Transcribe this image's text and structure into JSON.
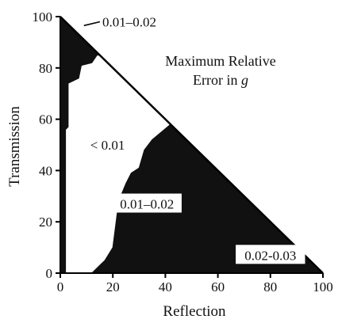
{
  "chart_data": {
    "type": "area",
    "title": "",
    "xlabel": "Reflection",
    "ylabel": "Transmission",
    "xlim": [
      0,
      100
    ],
    "ylim": [
      0,
      100
    ],
    "xticks": [
      "0",
      "20",
      "40",
      "60",
      "80",
      "100"
    ],
    "yticks": [
      "0",
      "20",
      "40",
      "60",
      "80",
      "100"
    ],
    "grid": false,
    "annotation": {
      "line1": "Maximum Relative",
      "line2_prefix": "Error in ",
      "line2_symbol": "g"
    },
    "regions": [
      {
        "label": "0.01–0.02",
        "shade": "#111111",
        "label_point": [
          16,
          98
        ],
        "polygon": [
          [
            0,
            100
          ],
          [
            0,
            0
          ],
          [
            2,
            0
          ],
          [
            2,
            56
          ],
          [
            3,
            57
          ],
          [
            3,
            74
          ],
          [
            7,
            76
          ],
          [
            8,
            81
          ],
          [
            12,
            82
          ],
          [
            14,
            85
          ],
          [
            15,
            85
          ]
        ]
      },
      {
        "label": "< 0.01",
        "shade": "#ffffff",
        "label_point": [
          18,
          50
        ],
        "polygon": []
      },
      {
        "label": "0.01–0.02",
        "shade": "#111111",
        "label_point": [
          33,
          27
        ],
        "polygon": [
          [
            42,
            58
          ],
          [
            100,
            0
          ],
          [
            12,
            0
          ],
          [
            17,
            5
          ],
          [
            20,
            10
          ],
          [
            21,
            18
          ],
          [
            22,
            26
          ],
          [
            23,
            30
          ],
          [
            25,
            35
          ],
          [
            27,
            39
          ],
          [
            30,
            41
          ],
          [
            32,
            48
          ],
          [
            35,
            52
          ]
        ]
      },
      {
        "label": "0.02-0.03",
        "shade": "#111111",
        "label_point": [
          80,
          7
        ],
        "polygon": []
      }
    ]
  }
}
